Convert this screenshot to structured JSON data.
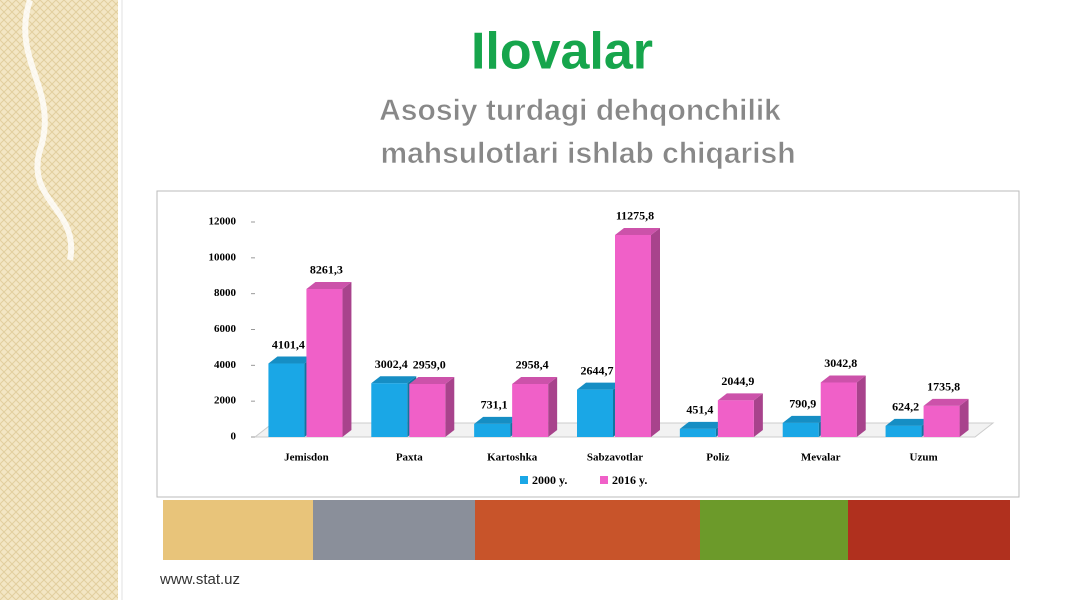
{
  "slide": {
    "title": "Ilovalar",
    "subtitle": [
      "Asosiy turdagi dehqonchilik",
      "mahsulotlari ishlab chiqarish"
    ],
    "footer": "www.stat.uz"
  },
  "chart_data": {
    "type": "bar",
    "categories": [
      "Jemisdon",
      "Paxta",
      "Kartoshka",
      "Sabzavotlar",
      "Poliz",
      "Mevalar",
      "Uzum"
    ],
    "series": [
      {
        "name": "2000 y.",
        "color": "#1aa7e6",
        "values": [
          4101.4,
          3002.4,
          731.1,
          2644.7,
          451.4,
          790.9,
          624.2
        ],
        "value_labels": [
          "4101,4",
          "3002,4",
          "731,1",
          "2644,7",
          "451,4",
          "790,9",
          "624,2"
        ]
      },
      {
        "name": "2016 y.",
        "color": "#f060c8",
        "values": [
          8261.3,
          2959.0,
          2958.4,
          11275.8,
          2044.9,
          3042.8,
          1735.8
        ],
        "value_labels": [
          "8261,3",
          "2959,0",
          "2958,4",
          "11275,8",
          "2044,9",
          "3042,8",
          "1735,8"
        ]
      }
    ],
    "ylim": [
      0,
      12000
    ],
    "yticks": [
      0,
      2000,
      4000,
      6000,
      8000,
      10000,
      12000
    ],
    "legend": "bottom"
  }
}
